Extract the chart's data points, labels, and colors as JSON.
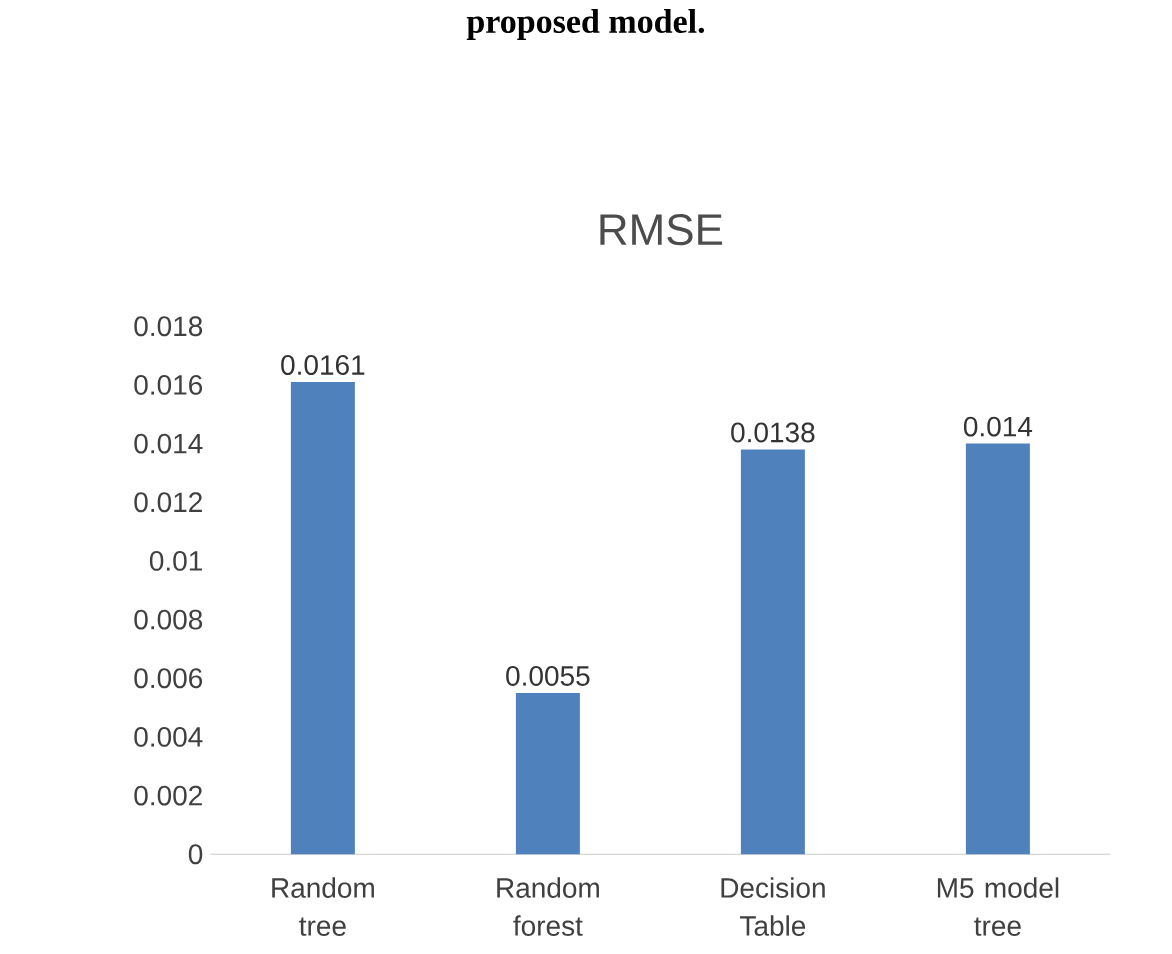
{
  "chart_data": {
    "type": "bar",
    "title": "RMSE",
    "annotations": [
      "proposed model."
    ],
    "categories": [
      "Random tree",
      "Random forest",
      "Decision Table",
      "M5 model tree"
    ],
    "values": [
      0.0161,
      0.0055,
      0.0138,
      0.014
    ],
    "color": "#4f81bd",
    "ylim": [
      0,
      0.018
    ],
    "yticks": [
      0,
      0.002,
      0.004,
      0.006,
      0.008,
      0.01,
      0.012,
      0.014,
      0.016,
      0.018
    ],
    "data_labels": true
  }
}
